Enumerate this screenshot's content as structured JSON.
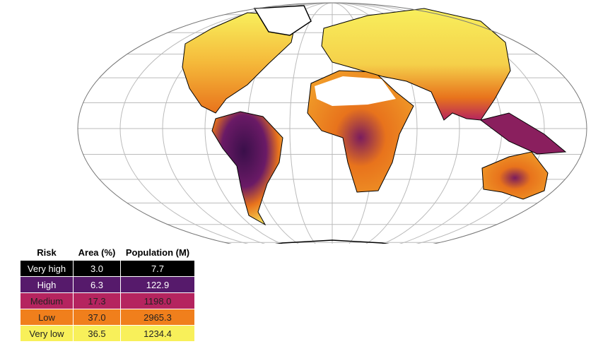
{
  "table": {
    "header": [
      "Risk",
      "Area (%)",
      "Population (M)"
    ],
    "rows": [
      [
        "Very high",
        "3.0",
        "7.7"
      ],
      [
        "High",
        "6.3",
        "122.9"
      ],
      [
        "Medium",
        "17.3",
        "1198.0"
      ],
      [
        "Low",
        "37.0",
        "2965.3"
      ],
      [
        "Very low",
        "36.5",
        "1234.4"
      ]
    ]
  }
}
